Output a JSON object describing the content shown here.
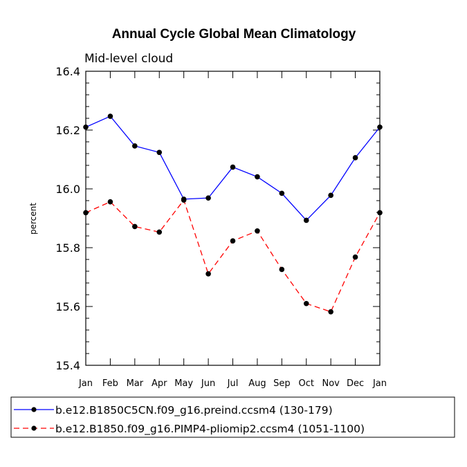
{
  "chart_data": {
    "type": "line",
    "title": "Annual Cycle Global Mean Climatology",
    "subtitle": "Mid-level cloud",
    "xlabel": "",
    "ylabel": "percent",
    "categories": [
      "Jan",
      "Feb",
      "Mar",
      "Apr",
      "May",
      "Jun",
      "Jul",
      "Aug",
      "Sep",
      "Oct",
      "Nov",
      "Dec",
      "Jan"
    ],
    "ylim": [
      15.4,
      16.4
    ],
    "yticks": [
      "15.4",
      "15.6",
      "15.8",
      "16.0",
      "16.2",
      "16.4"
    ],
    "series": [
      {
        "name": "b.e12.B1850C5CN.f09_g16.preind.ccsm4 (130-179)",
        "color": "#0000ff",
        "dash": "solid",
        "values": [
          16.21,
          16.247,
          16.146,
          16.124,
          15.965,
          15.969,
          16.074,
          16.041,
          15.985,
          15.893,
          15.978,
          16.106,
          16.21
        ]
      },
      {
        "name": "b.e12.B1850.f09_g16.PIMP4-pliomip2.ccsm4 (1051-1100)",
        "color": "#ff0000",
        "dash": "dashed",
        "values": [
          15.919,
          15.956,
          15.872,
          15.853,
          15.962,
          15.711,
          15.823,
          15.857,
          15.726,
          15.61,
          15.582,
          15.768,
          15.919
        ]
      }
    ]
  }
}
